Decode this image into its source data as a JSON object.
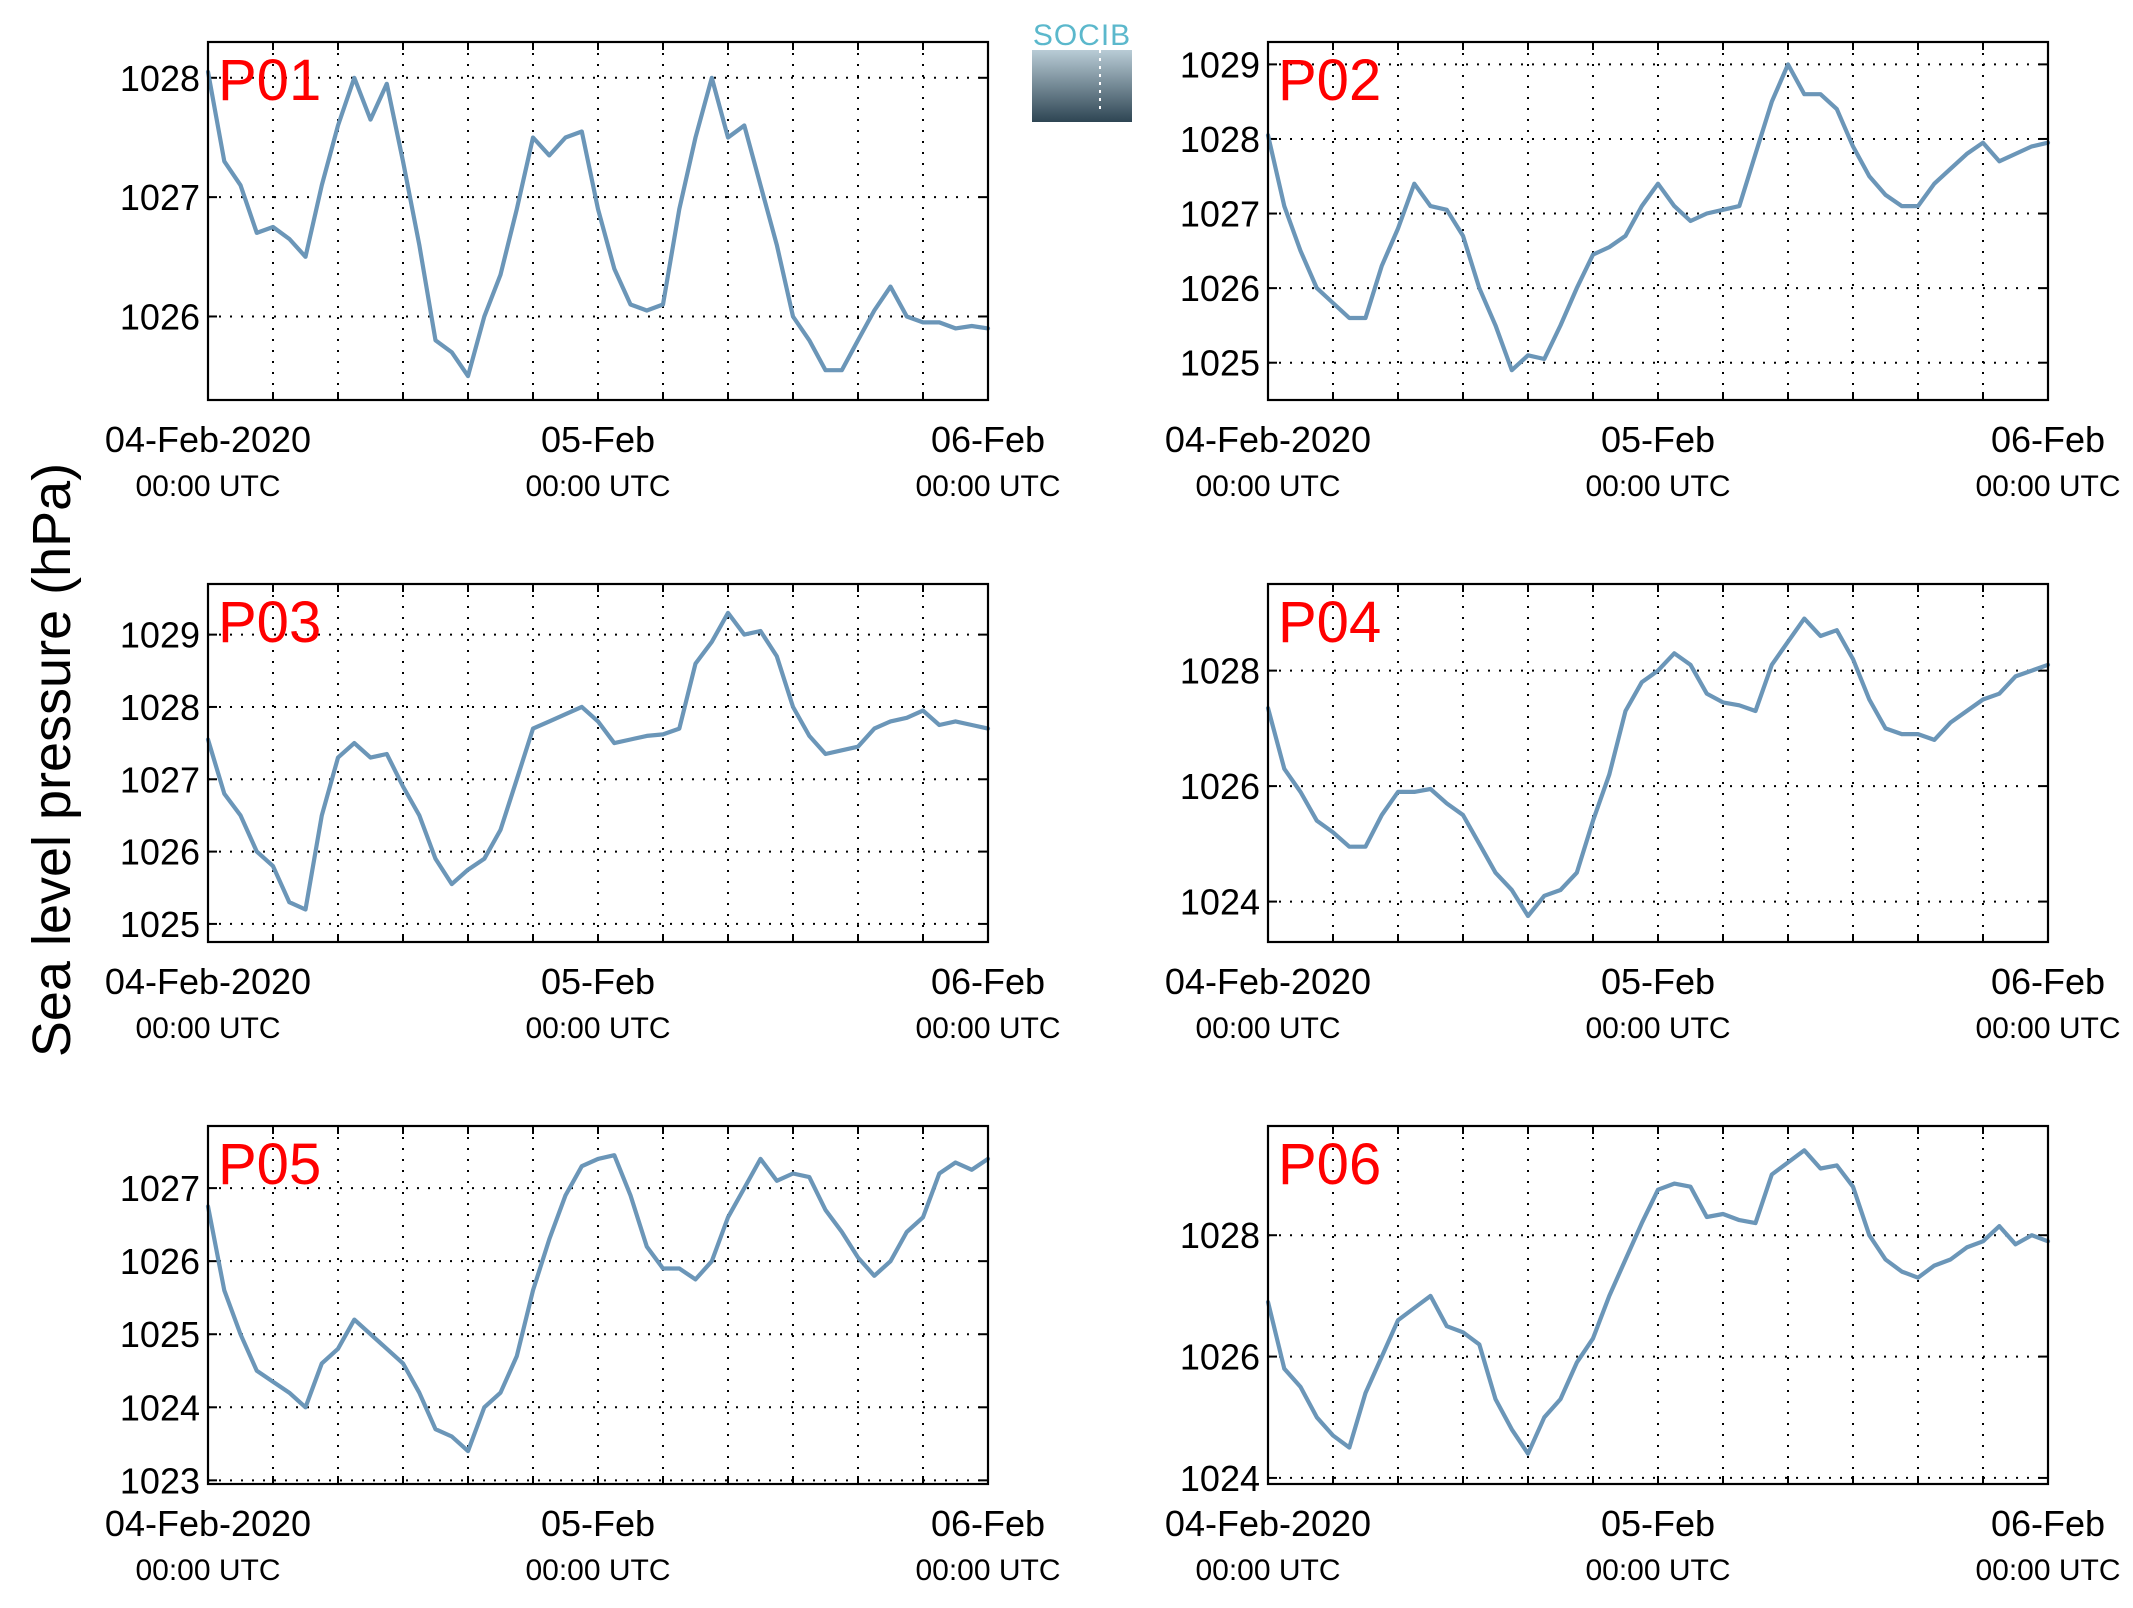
{
  "figure": {
    "ylabel": "Sea level pressure (hPa)",
    "logo_text": "SOCIB"
  },
  "chart_data": [
    {
      "type": "line",
      "panel": "P01",
      "ylim": [
        1025.3,
        1028.3
      ],
      "yticks": [
        1026,
        1027,
        1028
      ],
      "xticks": [
        {
          "label": "04-Feb-2020",
          "sub": "00:00 UTC"
        },
        {
          "label": "05-Feb",
          "sub": "00:00 UTC"
        },
        {
          "label": "06-Feb",
          "sub": "00:00 UTC"
        }
      ],
      "x_hours": [
        0,
        1,
        2,
        3,
        4,
        5,
        6,
        7,
        8,
        9,
        10,
        11,
        12,
        13,
        14,
        15,
        16,
        17,
        18,
        19,
        20,
        21,
        22,
        23,
        24,
        25,
        26,
        27,
        28,
        29,
        30,
        31,
        32,
        33,
        34,
        35,
        36,
        37,
        38,
        39,
        40,
        41,
        42,
        43,
        44,
        45,
        46,
        47,
        48
      ],
      "values": [
        1028.05,
        1027.3,
        1027.1,
        1026.7,
        1026.75,
        1026.65,
        1026.5,
        1027.1,
        1027.6,
        1028.0,
        1027.65,
        1027.95,
        1027.3,
        1026.6,
        1025.8,
        1025.7,
        1025.5,
        1026.0,
        1026.35,
        1026.9,
        1027.5,
        1027.35,
        1027.5,
        1027.55,
        1026.9,
        1026.4,
        1026.1,
        1026.05,
        1026.1,
        1026.9,
        1027.5,
        1028.0,
        1027.5,
        1027.6,
        1027.1,
        1026.6,
        1026.0,
        1025.8,
        1025.55,
        1025.55,
        1025.8,
        1026.05,
        1026.25,
        1026.0,
        1025.95,
        1025.95,
        1025.9,
        1025.92,
        1025.9
      ],
      "grid": true
    },
    {
      "type": "line",
      "panel": "P02",
      "ylim": [
        1024.5,
        1029.3
      ],
      "yticks": [
        1025,
        1026,
        1027,
        1028,
        1029
      ],
      "xticks": [
        {
          "label": "04-Feb-2020",
          "sub": "00:00 UTC"
        },
        {
          "label": "05-Feb",
          "sub": "00:00 UTC"
        },
        {
          "label": "06-Feb",
          "sub": "00:00 UTC"
        }
      ],
      "x_hours": [
        0,
        1,
        2,
        3,
        4,
        5,
        6,
        7,
        8,
        9,
        10,
        11,
        12,
        13,
        14,
        15,
        16,
        17,
        18,
        19,
        20,
        21,
        22,
        23,
        24,
        25,
        26,
        27,
        28,
        29,
        30,
        31,
        32,
        33,
        34,
        35,
        36,
        37,
        38,
        39,
        40,
        41,
        42,
        43,
        44,
        45,
        46,
        47,
        48
      ],
      "values": [
        1028.05,
        1027.1,
        1026.5,
        1026.0,
        1025.8,
        1025.6,
        1025.6,
        1026.3,
        1026.8,
        1027.4,
        1027.1,
        1027.05,
        1026.7,
        1026.0,
        1025.5,
        1024.9,
        1025.1,
        1025.05,
        1025.5,
        1026.0,
        1026.45,
        1026.55,
        1026.7,
        1027.1,
        1027.4,
        1027.1,
        1026.9,
        1027.0,
        1027.05,
        1027.1,
        1027.8,
        1028.5,
        1029.0,
        1028.6,
        1028.6,
        1028.4,
        1027.9,
        1027.5,
        1027.25,
        1027.1,
        1027.1,
        1027.4,
        1027.6,
        1027.8,
        1027.95,
        1027.7,
        1027.8,
        1027.9,
        1027.95
      ],
      "grid": true
    },
    {
      "type": "line",
      "panel": "P03",
      "ylim": [
        1024.75,
        1029.7
      ],
      "yticks": [
        1025,
        1026,
        1027,
        1028,
        1029
      ],
      "xticks": [
        {
          "label": "04-Feb-2020",
          "sub": "00:00 UTC"
        },
        {
          "label": "05-Feb",
          "sub": "00:00 UTC"
        },
        {
          "label": "06-Feb",
          "sub": "00:00 UTC"
        }
      ],
      "x_hours": [
        0,
        1,
        2,
        3,
        4,
        5,
        6,
        7,
        8,
        9,
        10,
        11,
        12,
        13,
        14,
        15,
        16,
        17,
        18,
        19,
        20,
        21,
        22,
        23,
        24,
        25,
        26,
        27,
        28,
        29,
        30,
        31,
        32,
        33,
        34,
        35,
        36,
        37,
        38,
        39,
        40,
        41,
        42,
        43,
        44,
        45,
        46,
        47,
        48
      ],
      "values": [
        1027.55,
        1026.8,
        1026.5,
        1026.0,
        1025.8,
        1025.3,
        1025.2,
        1026.5,
        1027.3,
        1027.5,
        1027.3,
        1027.35,
        1026.9,
        1026.5,
        1025.9,
        1025.55,
        1025.75,
        1025.9,
        1026.3,
        1027.0,
        1027.7,
        1027.8,
        1027.9,
        1028.0,
        1027.8,
        1027.5,
        1027.55,
        1027.6,
        1027.62,
        1027.7,
        1028.6,
        1028.9,
        1029.3,
        1029.0,
        1029.05,
        1028.7,
        1028.0,
        1027.6,
        1027.35,
        1027.4,
        1027.45,
        1027.7,
        1027.8,
        1027.85,
        1027.95,
        1027.75,
        1027.8,
        1027.75,
        1027.7
      ],
      "grid": true
    },
    {
      "type": "line",
      "panel": "P04",
      "ylim": [
        1023.3,
        1029.5
      ],
      "yticks": [
        1024,
        1026,
        1028
      ],
      "xticks": [
        {
          "label": "04-Feb-2020",
          "sub": "00:00 UTC"
        },
        {
          "label": "05-Feb",
          "sub": "00:00 UTC"
        },
        {
          "label": "06-Feb",
          "sub": "00:00 UTC"
        }
      ],
      "x_hours": [
        0,
        1,
        2,
        3,
        4,
        5,
        6,
        7,
        8,
        9,
        10,
        11,
        12,
        13,
        14,
        15,
        16,
        17,
        18,
        19,
        20,
        21,
        22,
        23,
        24,
        25,
        26,
        27,
        28,
        29,
        30,
        31,
        32,
        33,
        34,
        35,
        36,
        37,
        38,
        39,
        40,
        41,
        42,
        43,
        44,
        45,
        46,
        47,
        48
      ],
      "values": [
        1027.35,
        1026.3,
        1025.9,
        1025.4,
        1025.2,
        1024.95,
        1024.95,
        1025.5,
        1025.9,
        1025.9,
        1025.95,
        1025.7,
        1025.5,
        1025.0,
        1024.5,
        1024.2,
        1023.75,
        1024.1,
        1024.2,
        1024.5,
        1025.4,
        1026.2,
        1027.3,
        1027.8,
        1028.0,
        1028.3,
        1028.1,
        1027.6,
        1027.45,
        1027.4,
        1027.3,
        1028.1,
        1028.5,
        1028.9,
        1028.6,
        1028.7,
        1028.2,
        1027.5,
        1027.0,
        1026.9,
        1026.9,
        1026.8,
        1027.1,
        1027.3,
        1027.5,
        1027.6,
        1027.9,
        1028.0,
        1028.1
      ],
      "grid": true
    },
    {
      "type": "line",
      "panel": "P05",
      "ylim": [
        1022.95,
        1027.85
      ],
      "yticks": [
        1023,
        1024,
        1025,
        1026,
        1027
      ],
      "xticks": [
        {
          "label": "04-Feb-2020",
          "sub": "00:00 UTC"
        },
        {
          "label": "05-Feb",
          "sub": "00:00 UTC"
        },
        {
          "label": "06-Feb",
          "sub": "00:00 UTC"
        }
      ],
      "x_hours": [
        0,
        1,
        2,
        3,
        4,
        5,
        6,
        7,
        8,
        9,
        10,
        11,
        12,
        13,
        14,
        15,
        16,
        17,
        18,
        19,
        20,
        21,
        22,
        23,
        24,
        25,
        26,
        27,
        28,
        29,
        30,
        31,
        32,
        33,
        34,
        35,
        36,
        37,
        38,
        39,
        40,
        41,
        42,
        43,
        44,
        45,
        46,
        47,
        48
      ],
      "values": [
        1026.75,
        1025.6,
        1025.0,
        1024.5,
        1024.35,
        1024.2,
        1024.0,
        1024.6,
        1024.8,
        1025.2,
        1025.0,
        1024.8,
        1024.6,
        1024.2,
        1023.7,
        1023.6,
        1023.4,
        1024.0,
        1024.2,
        1024.7,
        1025.6,
        1026.3,
        1026.9,
        1027.3,
        1027.4,
        1027.45,
        1026.9,
        1026.2,
        1025.9,
        1025.9,
        1025.75,
        1026.0,
        1026.6,
        1027.0,
        1027.4,
        1027.1,
        1027.2,
        1027.15,
        1026.7,
        1026.4,
        1026.05,
        1025.8,
        1026.0,
        1026.4,
        1026.6,
        1027.2,
        1027.35,
        1027.25,
        1027.4
      ],
      "grid": true
    },
    {
      "type": "line",
      "panel": "P06",
      "ylim": [
        1023.9,
        1029.8
      ],
      "yticks": [
        1024,
        1026,
        1028
      ],
      "xticks": [
        {
          "label": "04-Feb-2020",
          "sub": "00:00 UTC"
        },
        {
          "label": "05-Feb",
          "sub": "00:00 UTC"
        },
        {
          "label": "06-Feb",
          "sub": "00:00 UTC"
        }
      ],
      "x_hours": [
        0,
        1,
        2,
        3,
        4,
        5,
        6,
        7,
        8,
        9,
        10,
        11,
        12,
        13,
        14,
        15,
        16,
        17,
        18,
        19,
        20,
        21,
        22,
        23,
        24,
        25,
        26,
        27,
        28,
        29,
        30,
        31,
        32,
        33,
        34,
        35,
        36,
        37,
        38,
        39,
        40,
        41,
        42,
        43,
        44,
        45,
        46,
        47,
        48
      ],
      "values": [
        1026.9,
        1025.8,
        1025.5,
        1025.0,
        1024.7,
        1024.5,
        1025.4,
        1026.0,
        1026.6,
        1026.8,
        1027.0,
        1026.5,
        1026.4,
        1026.2,
        1025.3,
        1024.8,
        1024.4,
        1025.0,
        1025.3,
        1025.9,
        1026.3,
        1027.0,
        1027.6,
        1028.2,
        1028.75,
        1028.85,
        1028.8,
        1028.3,
        1028.35,
        1028.25,
        1028.2,
        1029.0,
        1029.2,
        1029.4,
        1029.1,
        1029.15,
        1028.8,
        1028.0,
        1027.6,
        1027.4,
        1027.3,
        1027.5,
        1027.6,
        1027.8,
        1027.9,
        1028.15,
        1027.85,
        1028.0,
        1027.9
      ],
      "grid": true
    }
  ]
}
